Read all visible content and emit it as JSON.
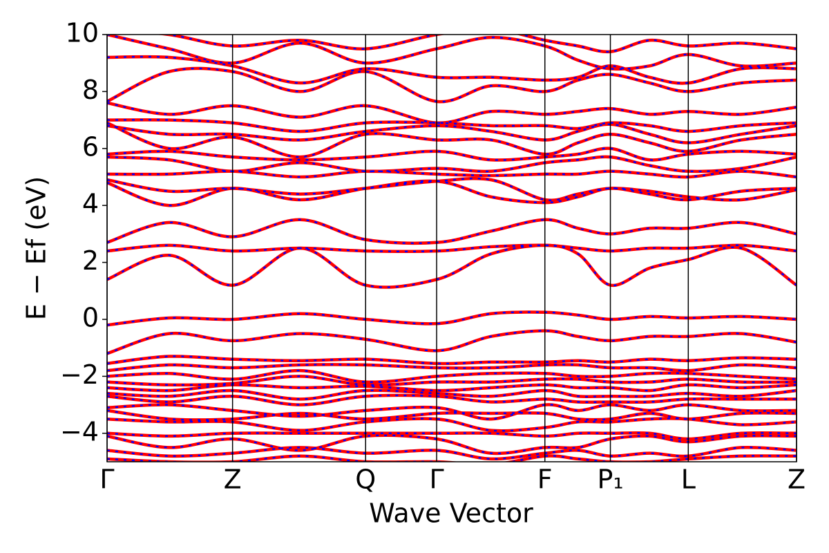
{
  "chart_data": {
    "type": "band-structure",
    "xlabel": "Wave Vector",
    "ylabel": "E − Ef (eV)",
    "xlim": [
      0,
      1
    ],
    "ylim": [
      -5,
      10
    ],
    "xticks": [
      {
        "value": 0,
        "label": "Γ"
      },
      {
        "value": 0.182,
        "label": "Z"
      },
      {
        "value": 0.375,
        "label": "Q"
      },
      {
        "value": 0.478,
        "label": "Γ"
      },
      {
        "value": 0.635,
        "label": "F"
      },
      {
        "value": 0.73,
        "label": "P₁"
      },
      {
        "value": 0.843,
        "label": "L"
      },
      {
        "value": 1,
        "label": "Z"
      }
    ],
    "yticks": [
      {
        "value": -4,
        "label": "−4"
      },
      {
        "value": -2,
        "label": "−2"
      },
      0,
      2,
      4,
      6,
      8,
      10
    ],
    "series": [
      {
        "color": "#ff0000",
        "linestyle": "solid"
      },
      {
        "color": "#0000ff",
        "linestyle": "dashed"
      }
    ],
    "x": [
      0,
      0.09,
      0.182,
      0.28,
      0.375,
      0.478,
      0.557,
      0.635,
      0.683,
      0.73,
      0.787,
      0.843,
      0.92,
      1
    ],
    "bands": [
      [
        1.4,
        2.25,
        1.2,
        2.5,
        1.2,
        1.4,
        2.3,
        2.6,
        2.3,
        1.2,
        1.8,
        2.1,
        2.5,
        1.2
      ],
      [
        2.4,
        2.6,
        2.4,
        2.5,
        2.4,
        2.4,
        2.55,
        2.6,
        2.5,
        2.4,
        2.5,
        2.5,
        2.6,
        2.4
      ],
      [
        2.7,
        3.4,
        2.9,
        3.5,
        2.8,
        2.7,
        3.1,
        3.5,
        3.2,
        3.0,
        3.2,
        3.2,
        3.4,
        3.0
      ],
      [
        4.8,
        4.0,
        4.6,
        4.2,
        4.6,
        4.85,
        4.3,
        4.1,
        4.3,
        4.6,
        4.4,
        4.2,
        4.5,
        4.6
      ],
      [
        4.9,
        4.5,
        4.6,
        4.4,
        4.6,
        4.85,
        4.9,
        4.2,
        4.4,
        4.6,
        4.5,
        4.3,
        4.2,
        4.55
      ],
      [
        5.1,
        5.1,
        5.2,
        5.0,
        5.2,
        5.1,
        5.05,
        5.1,
        5.1,
        5.2,
        5.1,
        5.0,
        5.2,
        5.0
      ],
      [
        5.7,
        5.6,
        5.2,
        5.5,
        5.2,
        5.3,
        5.2,
        5.5,
        5.6,
        5.7,
        5.4,
        5.2,
        5.3,
        5.7
      ],
      [
        5.8,
        5.9,
        5.7,
        5.6,
        5.7,
        5.9,
        5.6,
        5.7,
        5.8,
        6.0,
        5.6,
        5.8,
        5.9,
        5.8
      ],
      [
        6.9,
        6.0,
        6.4,
        5.7,
        6.5,
        6.3,
        6.3,
        5.8,
        6.2,
        6.5,
        6.2,
        5.9,
        6.3,
        6.5
      ],
      [
        6.8,
        6.5,
        6.5,
        6.3,
        6.6,
        6.8,
        6.6,
        6.3,
        6.6,
        6.85,
        6.5,
        6.2,
        6.5,
        6.8
      ],
      [
        7.0,
        7.0,
        6.9,
        6.6,
        6.9,
        6.9,
        6.8,
        6.8,
        6.7,
        6.9,
        6.8,
        6.6,
        6.8,
        6.9
      ],
      [
        7.6,
        7.2,
        7.5,
        7.1,
        7.5,
        6.9,
        7.3,
        7.2,
        7.3,
        7.4,
        7.2,
        7.3,
        7.2,
        7.45
      ],
      [
        7.65,
        8.7,
        8.7,
        8.0,
        8.7,
        7.65,
        8.2,
        8.0,
        8.4,
        8.6,
        8.3,
        8.0,
        8.3,
        8.4
      ],
      [
        9.2,
        9.2,
        8.9,
        8.3,
        8.8,
        8.5,
        8.5,
        8.4,
        8.5,
        8.9,
        8.5,
        8.3,
        8.8,
        8.8
      ],
      [
        10.0,
        9.5,
        9.0,
        9.7,
        9.0,
        9.5,
        9.9,
        9.6,
        9.1,
        8.8,
        8.9,
        9.3,
        8.9,
        9.0
      ],
      [
        10.2,
        10.0,
        9.6,
        9.8,
        9.5,
        10.0,
        10.2,
        9.8,
        9.6,
        9.4,
        9.8,
        9.6,
        9.7,
        9.5
      ],
      [
        -0.2,
        0.05,
        0.0,
        0.2,
        0.0,
        -0.15,
        0.2,
        0.25,
        0.15,
        0.0,
        0.1,
        0.05,
        0.1,
        0.0
      ],
      [
        -1.2,
        -0.5,
        -0.75,
        -0.5,
        -0.7,
        -1.1,
        -0.6,
        -0.4,
        -0.6,
        -0.75,
        -0.6,
        -0.6,
        -0.5,
        -0.8
      ],
      [
        -1.55,
        -1.3,
        -1.4,
        -1.45,
        -1.4,
        -1.55,
        -1.5,
        -1.5,
        -1.45,
        -1.5,
        -1.4,
        -1.45,
        -1.35,
        -1.4
      ],
      [
        -1.8,
        -1.6,
        -1.7,
        -1.6,
        -1.6,
        -1.7,
        -1.7,
        -1.6,
        -1.6,
        -1.7,
        -1.7,
        -1.8,
        -1.6,
        -1.7
      ],
      [
        -2.0,
        -1.9,
        -2.1,
        -1.8,
        -2.2,
        -2.0,
        -1.9,
        -1.9,
        -2.0,
        -2.0,
        -1.9,
        -1.9,
        -2.0,
        -2.1
      ],
      [
        -2.2,
        -2.3,
        -2.25,
        -2.0,
        -2.3,
        -2.2,
        -2.2,
        -2.1,
        -2.1,
        -2.2,
        -2.2,
        -2.1,
        -2.2,
        -2.2
      ],
      [
        -2.4,
        -2.5,
        -2.3,
        -2.4,
        -2.35,
        -2.5,
        -2.4,
        -2.3,
        -2.4,
        -2.4,
        -2.5,
        -2.3,
        -2.4,
        -2.3
      ],
      [
        -2.6,
        -2.7,
        -2.5,
        -2.8,
        -2.5,
        -2.6,
        -2.7,
        -2.5,
        -2.7,
        -2.7,
        -2.7,
        -2.6,
        -2.7,
        -2.5
      ],
      [
        -2.7,
        -2.9,
        -2.7,
        -3.0,
        -2.7,
        -2.7,
        -2.9,
        -2.8,
        -2.9,
        -2.9,
        -2.9,
        -2.8,
        -2.8,
        -2.8
      ],
      [
        -3.1,
        -3.0,
        -3.2,
        -3.4,
        -3.2,
        -3.1,
        -3.5,
        -3.0,
        -3.2,
        -3.0,
        -3.2,
        -3.0,
        -3.2,
        -3.2
      ],
      [
        -3.2,
        -3.5,
        -3.5,
        -3.3,
        -3.5,
        -3.3,
        -3.3,
        -3.3,
        -3.5,
        -3.5,
        -3.3,
        -3.5,
        -3.3,
        -3.3
      ],
      [
        -3.5,
        -3.6,
        -3.6,
        -3.9,
        -3.6,
        -3.5,
        -3.9,
        -3.8,
        -3.6,
        -3.6,
        -3.5,
        -3.5,
        -3.7,
        -3.6
      ],
      [
        -4.0,
        -4.1,
        -4.0,
        -4.0,
        -4.0,
        -4.0,
        -4.0,
        -4.1,
        -4.0,
        -4.0,
        -4.0,
        -4.2,
        -4.0,
        -4.0
      ],
      [
        -4.1,
        -4.5,
        -4.2,
        -4.6,
        -4.1,
        -4.2,
        -4.7,
        -4.5,
        -4.5,
        -4.2,
        -4.1,
        -4.3,
        -4.1,
        -4.1
      ],
      [
        -4.6,
        -4.8,
        -4.7,
        -4.5,
        -4.7,
        -4.6,
        -4.9,
        -4.7,
        -4.6,
        -4.8,
        -4.7,
        -4.8,
        -4.5,
        -4.6
      ],
      [
        -4.9,
        -5.0,
        -5.0,
        -4.8,
        -5.0,
        -5.0,
        -5.1,
        -4.8,
        -4.9,
        -5.0,
        -5.0,
        -4.9,
        -4.8,
        -4.8
      ]
    ]
  }
}
